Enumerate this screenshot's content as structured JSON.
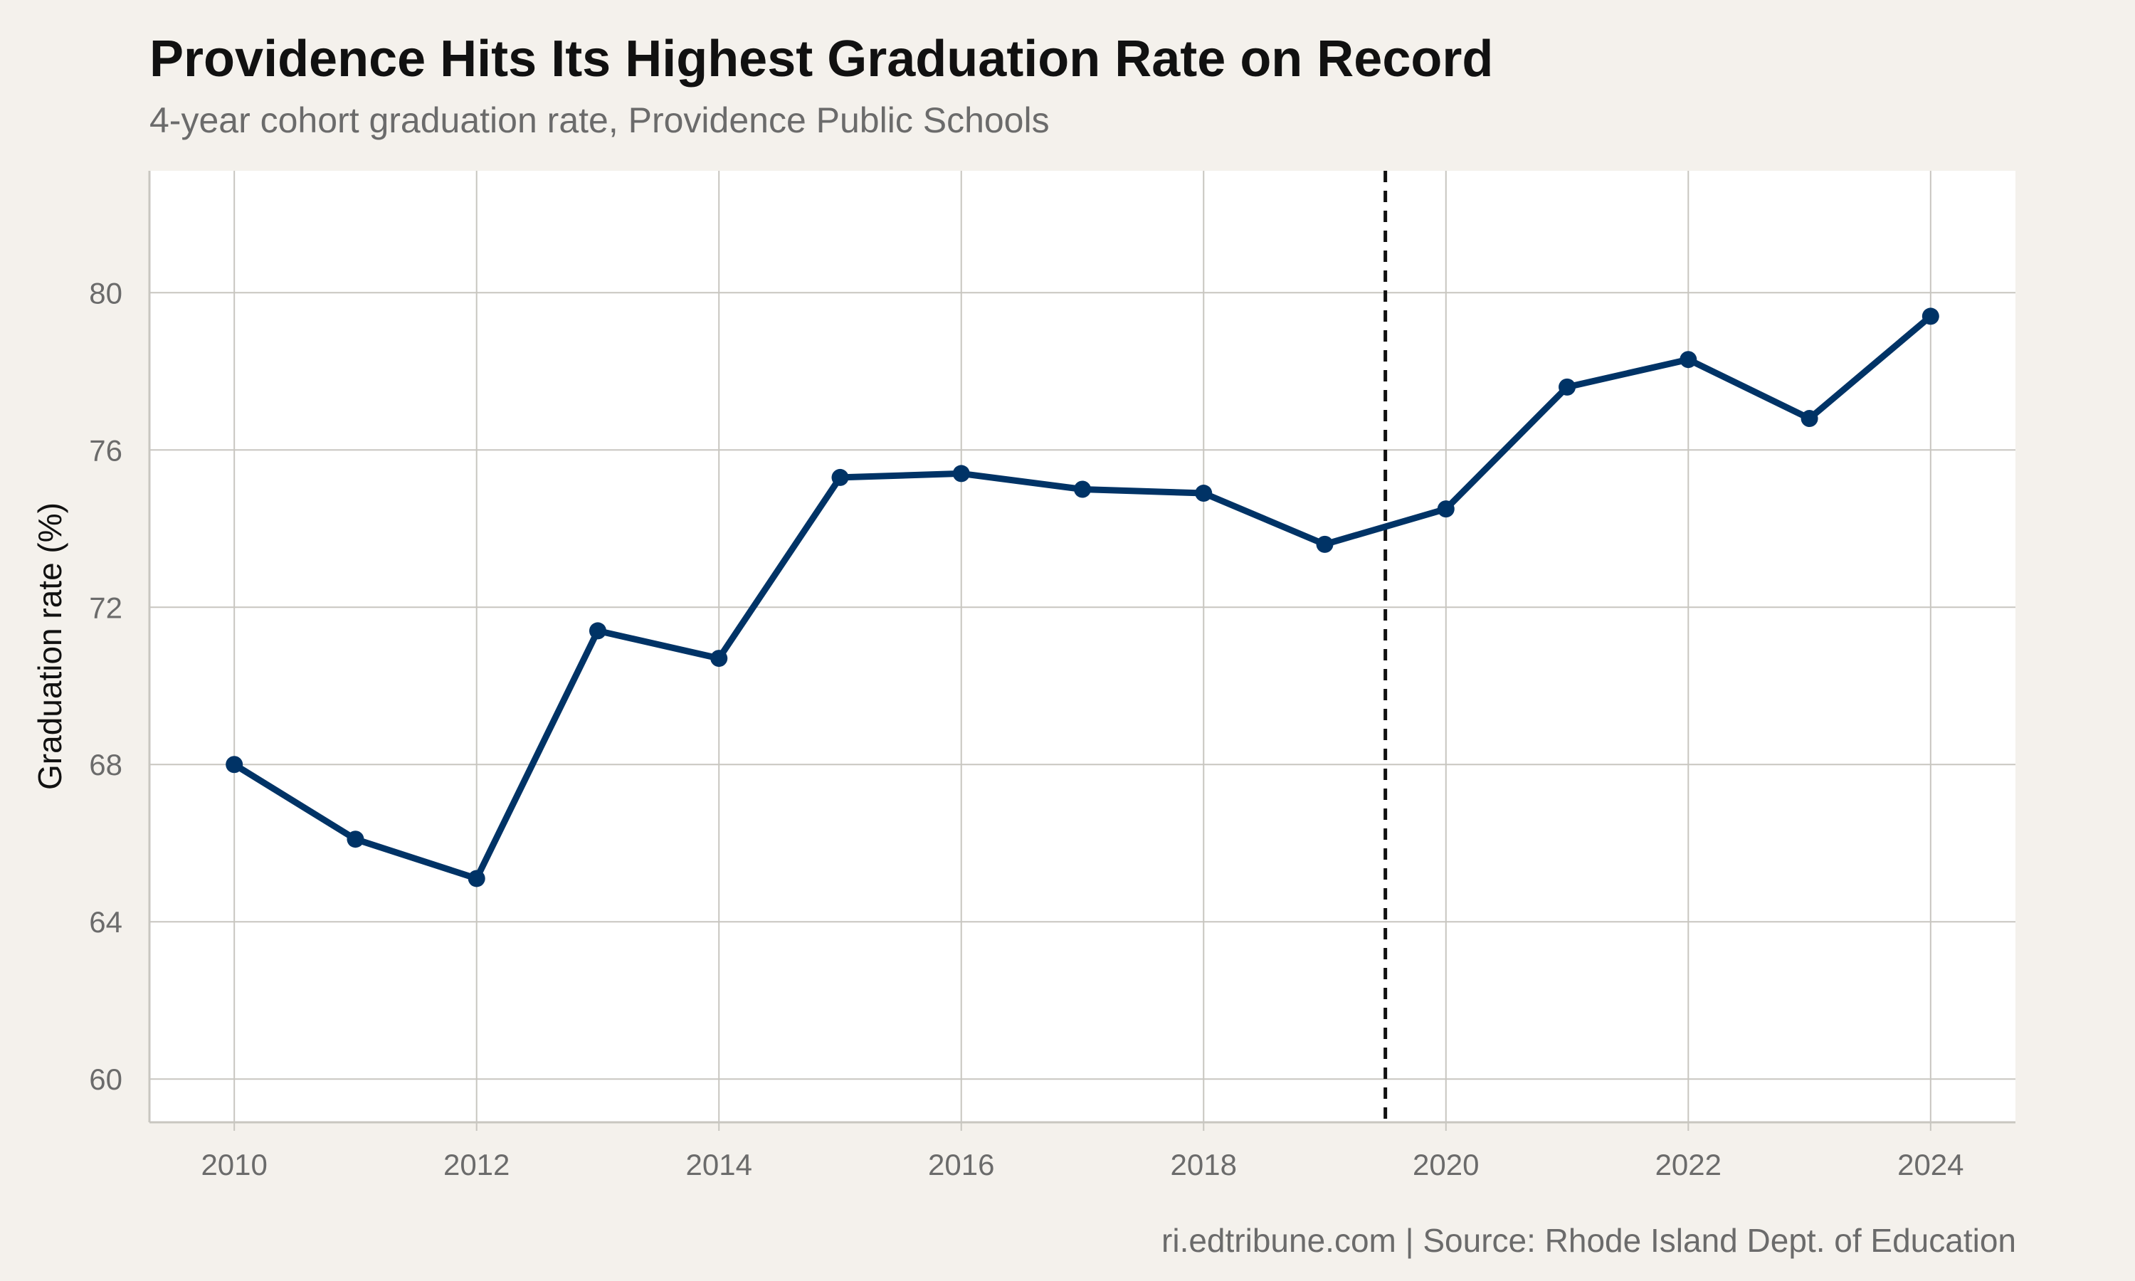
{
  "header": {
    "title": "Providence Hits Its Highest Graduation Rate on Record",
    "subtitle": "4-year cohort graduation rate, Providence Public Schools"
  },
  "footer": {
    "caption": "ri.edtribune.com | Source: Rhode Island Dept. of Education"
  },
  "chart_data": {
    "type": "line",
    "title": "Providence Hits Its Highest Graduation Rate on Record",
    "subtitle": "4-year cohort graduation rate, Providence Public Schools",
    "xlabel": "",
    "ylabel": "Graduation rate (%)",
    "x": [
      2010,
      2011,
      2012,
      2013,
      2014,
      2015,
      2016,
      2017,
      2018,
      2019,
      2020,
      2021,
      2022,
      2023,
      2024
    ],
    "series": [
      {
        "values": [
          68.0,
          66.1,
          65.1,
          71.4,
          70.7,
          75.3,
          75.4,
          75.0,
          74.9,
          73.6,
          74.5,
          77.6,
          78.3,
          76.8,
          79.4
        ]
      }
    ],
    "x_ticks": [
      2010,
      2012,
      2014,
      2016,
      2018,
      2020,
      2022,
      2024
    ],
    "y_ticks": [
      60,
      64,
      68,
      72,
      76,
      80
    ],
    "xlim": [
      2009.3,
      2024.7
    ],
    "ylim": [
      58.9,
      83.1
    ],
    "reference_line": {
      "orientation": "vertical",
      "x": 2019.5,
      "style": "dashed",
      "color": "#111111"
    },
    "grid": true,
    "legend": "none",
    "colors": {
      "line": "#003366",
      "grid": "#c8c6c0",
      "panel": "#ffffff",
      "background": "#f4f1ec"
    }
  }
}
